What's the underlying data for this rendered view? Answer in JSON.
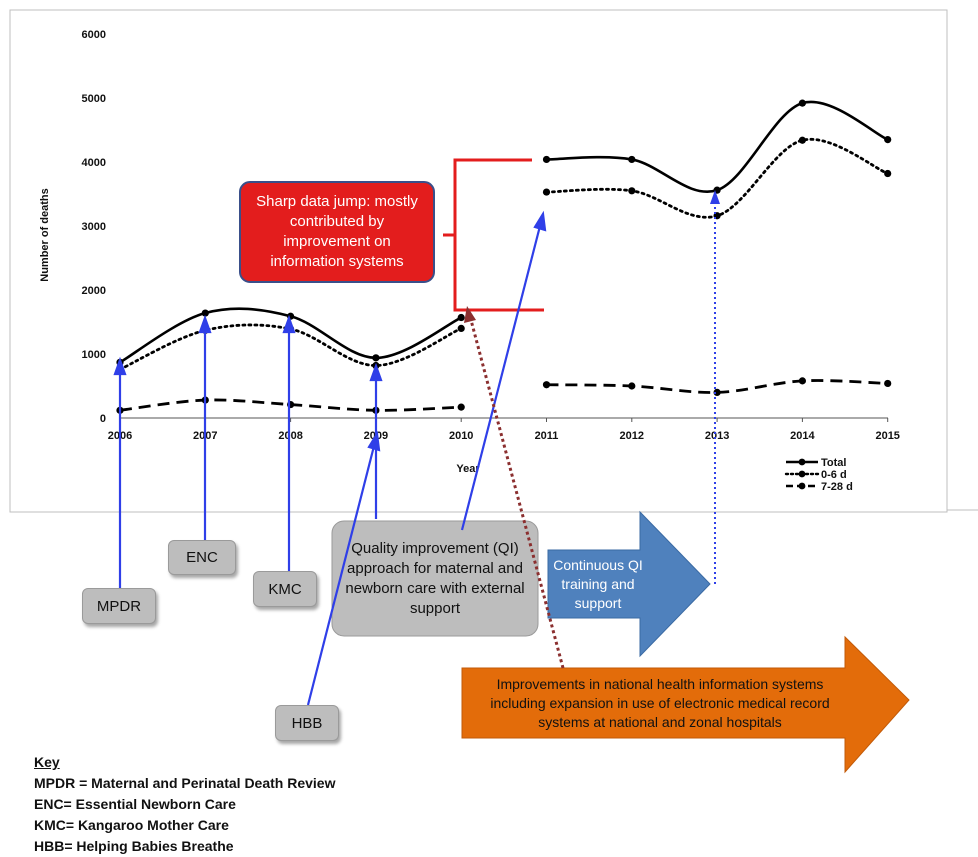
{
  "chart_data": {
    "type": "line",
    "ylabel": "Number of deaths",
    "xlabel": "Year",
    "x": [
      "2006",
      "2007",
      "2008",
      "2009",
      "2010",
      "2011",
      "2012",
      "2013",
      "2014",
      "2015"
    ],
    "yticks": [
      "0",
      "1000",
      "2000",
      "3000",
      "4000",
      "5000",
      "6000"
    ],
    "ylim": [
      0,
      6000
    ],
    "series": [
      {
        "name": "Total",
        "style": "solid",
        "values": [
          870,
          1640,
          1590,
          940,
          1570,
          4040,
          4040,
          3560,
          4920,
          4350
        ]
      },
      {
        "name": "0-6 d",
        "style": "dotted",
        "values": [
          760,
          1370,
          1390,
          820,
          1400,
          3530,
          3550,
          3160,
          4340,
          3820
        ]
      },
      {
        "name": "7-28 d",
        "style": "dashed",
        "values": [
          120,
          280,
          210,
          120,
          170,
          520,
          500,
          400,
          580,
          540
        ]
      }
    ],
    "legend_placement": "bottom-right"
  },
  "annotations": {
    "jump_box": "Sharp data jump: mostly contributed by improvement on information systems",
    "qi_box": "Quality improvement (QI) approach for maternal and newborn care with external support",
    "continuous_qi": "Continuous QI training and support",
    "his_arrow": "Improvements in national health information systems including expansion in use of electronic medical record systems at national and zonal hospitals",
    "tags": {
      "mpdr": "MPDR",
      "enc": "ENC",
      "kmc": "KMC",
      "hbb": "HBB"
    }
  },
  "key": {
    "title": "Key",
    "items": [
      "MPDR = Maternal and Perinatal Death Review",
      "ENC= Essential Newborn Care",
      "KMC= Kangaroo Mother Care",
      "HBB= Helping Babies Breathe"
    ]
  },
  "colors": {
    "arrow_blue": "#2f3fe8",
    "red_box": "#e31d1d",
    "blue_arrow_fill": "#4f81bd",
    "orange_arrow": "#e36c0a",
    "brown_dotted": "#8b2f2f"
  }
}
